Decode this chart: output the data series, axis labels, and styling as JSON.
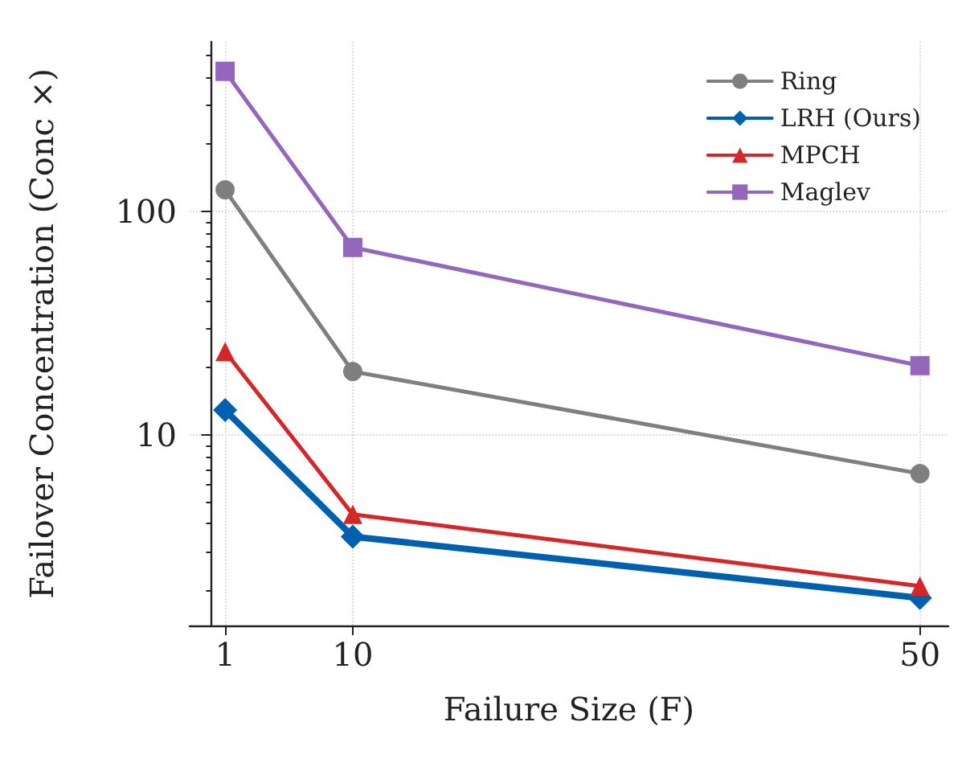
{
  "chart_data": {
    "type": "line",
    "xlabel": "Failure Size (F)",
    "ylabel": "Failover Concentration (Conc ×)",
    "x": [
      1,
      10,
      50
    ],
    "log": "y",
    "xlim": [
      -1.5,
      52
    ],
    "xticks": [
      1,
      10,
      50
    ],
    "ylim": [
      1.4,
      575
    ],
    "yticks": [
      10,
      100
    ],
    "grid": true,
    "legend": "top right",
    "line_style": "solid",
    "series": [
      {
        "name": "Ring",
        "color": "#7f7f7f",
        "marker": "circle",
        "values": [
          125,
          19.2,
          6.7
        ]
      },
      {
        "name": "LRH (Ours)",
        "color": "#0060b0",
        "marker": "diamond",
        "values": [
          12.9,
          3.5,
          1.86
        ]
      },
      {
        "name": "MPCH",
        "color": "#d62728",
        "marker": "triangle",
        "values": [
          23.6,
          4.4,
          2.1
        ]
      },
      {
        "name": "Maglev",
        "color": "#9467bd",
        "marker": "square",
        "values": [
          424,
          69,
          20.4
        ]
      }
    ]
  }
}
